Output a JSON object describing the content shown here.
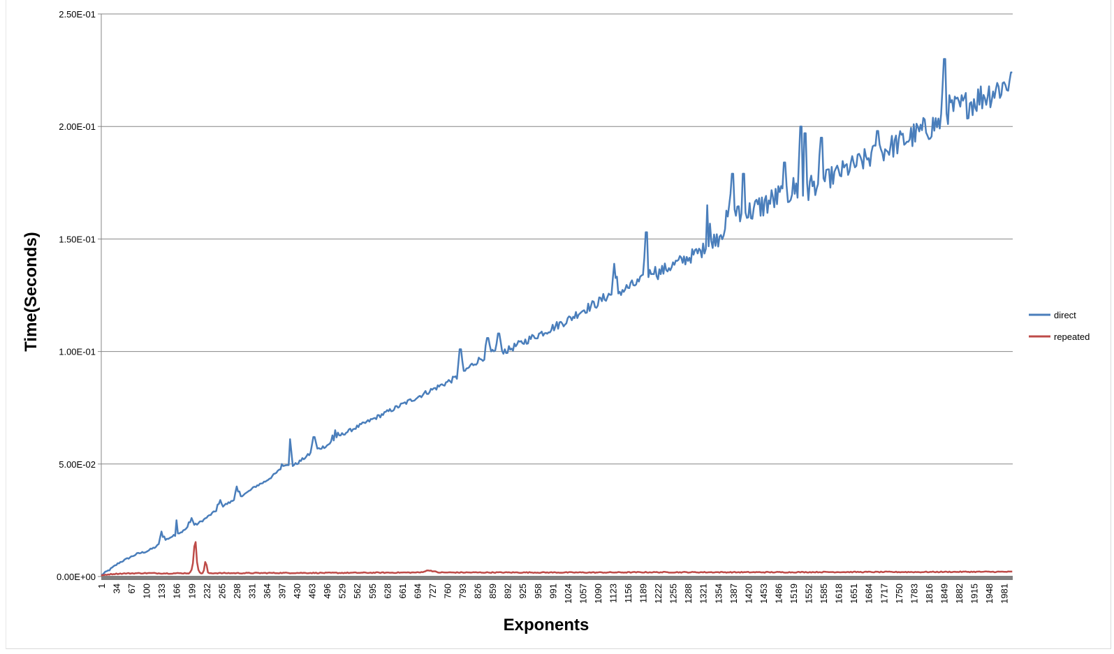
{
  "chart_data": {
    "type": "line",
    "title": "",
    "xlabel": "Exponents",
    "ylabel": "Time(Seconds)",
    "ylim": [
      0,
      0.25
    ],
    "y_ticks": [
      "0.00E+00",
      "5.00E-02",
      "1.00E-01",
      "1.50E-01",
      "2.00E-01",
      "2.50E-01"
    ],
    "x_range": [
      1,
      2000
    ],
    "x_tick_labels": [
      "1",
      "34",
      "67",
      "100",
      "133",
      "166",
      "199",
      "232",
      "265",
      "298",
      "331",
      "364",
      "397",
      "430",
      "463",
      "496",
      "529",
      "562",
      "595",
      "628",
      "661",
      "694",
      "727",
      "760",
      "793",
      "826",
      "859",
      "892",
      "925",
      "958",
      "991",
      "1024",
      "1057",
      "1090",
      "1123",
      "1156",
      "1189",
      "1222",
      "1255",
      "1288",
      "1321",
      "1354",
      "1387",
      "1420",
      "1453",
      "1486",
      "1519",
      "1552",
      "1585",
      "1618",
      "1651",
      "1684",
      "1717",
      "1750",
      "1783",
      "1816",
      "1849",
      "1882",
      "1915",
      "1948",
      "1981"
    ],
    "grid": "horizontal major gridlines",
    "legend_position": "right",
    "series": [
      {
        "name": "direct",
        "color": "#4a7ebb",
        "x": [
          1,
          20,
          40,
          60,
          80,
          100,
          120,
          140,
          160,
          170,
          180,
          199,
          210,
          225,
          245,
          265,
          285,
          300,
          320,
          340,
          360,
          380,
          397,
          410,
          420,
          430,
          450,
          470,
          496,
          520,
          540,
          560,
          580,
          600,
          620,
          640,
          660,
          680,
          700,
          720,
          740,
          760,
          780,
          793,
          810,
          830,
          850,
          870,
          892,
          910,
          930,
          950,
          970,
          991,
          1010,
          1030,
          1050,
          1070,
          1090,
          1110,
          1123,
          1140,
          1160,
          1180,
          1200,
          1210,
          1222,
          1240,
          1260,
          1280,
          1300,
          1320,
          1330,
          1340,
          1354,
          1370,
          1380,
          1390,
          1400,
          1420,
          1440,
          1460,
          1480,
          1500,
          1519,
          1530,
          1540,
          1560,
          1585,
          1600,
          1620,
          1640,
          1660,
          1680,
          1700,
          1720,
          1740,
          1760,
          1780,
          1800,
          1820,
          1840,
          1855,
          1860,
          1880,
          1900,
          1920,
          1940,
          1960,
          1980,
          2000
        ],
        "values": [
          0.0005,
          0.003,
          0.006,
          0.008,
          0.01,
          0.011,
          0.013,
          0.016,
          0.018,
          0.019,
          0.02,
          0.023,
          0.023,
          0.025,
          0.028,
          0.031,
          0.033,
          0.035,
          0.037,
          0.04,
          0.042,
          0.045,
          0.048,
          0.05,
          0.049,
          0.05,
          0.053,
          0.056,
          0.058,
          0.062,
          0.064,
          0.066,
          0.068,
          0.07,
          0.072,
          0.074,
          0.076,
          0.078,
          0.08,
          0.082,
          0.084,
          0.086,
          0.088,
          0.09,
          0.093,
          0.096,
          0.098,
          0.1,
          0.1,
          0.102,
          0.104,
          0.106,
          0.108,
          0.11,
          0.112,
          0.114,
          0.117,
          0.119,
          0.121,
          0.124,
          0.125,
          0.126,
          0.128,
          0.13,
          0.132,
          0.136,
          0.134,
          0.136,
          0.138,
          0.14,
          0.142,
          0.144,
          0.146,
          0.148,
          0.15,
          0.155,
          0.16,
          0.162,
          0.158,
          0.16,
          0.162,
          0.164,
          0.166,
          0.168,
          0.17,
          0.17,
          0.168,
          0.172,
          0.174,
          0.176,
          0.178,
          0.18,
          0.182,
          0.184,
          0.186,
          0.188,
          0.19,
          0.192,
          0.194,
          0.196,
          0.198,
          0.2,
          0.204,
          0.206,
          0.206,
          0.208,
          0.21,
          0.212,
          0.214,
          0.216,
          0.218
        ],
        "spikes": [
          {
            "x": 133,
            "value": 0.02
          },
          {
            "x": 166,
            "value": 0.025
          },
          {
            "x": 199,
            "value": 0.026
          },
          {
            "x": 262,
            "value": 0.034
          },
          {
            "x": 298,
            "value": 0.04
          },
          {
            "x": 397,
            "value": 0.05
          },
          {
            "x": 415,
            "value": 0.061
          },
          {
            "x": 467,
            "value": 0.062
          },
          {
            "x": 514,
            "value": 0.065
          },
          {
            "x": 788,
            "value": 0.101
          },
          {
            "x": 848,
            "value": 0.106
          },
          {
            "x": 872,
            "value": 0.108
          },
          {
            "x": 1126,
            "value": 0.139
          },
          {
            "x": 1196,
            "value": 0.153
          },
          {
            "x": 1330,
            "value": 0.165
          },
          {
            "x": 1385,
            "value": 0.179
          },
          {
            "x": 1410,
            "value": 0.179
          },
          {
            "x": 1500,
            "value": 0.184
          },
          {
            "x": 1536,
            "value": 0.2
          },
          {
            "x": 1545,
            "value": 0.197
          },
          {
            "x": 1580,
            "value": 0.195
          },
          {
            "x": 1704,
            "value": 0.198
          },
          {
            "x": 1851,
            "value": 0.23
          },
          {
            "x": 1998,
            "value": 0.224
          }
        ]
      },
      {
        "name": "repeated",
        "color": "#be4b48",
        "x": [
          1,
          10,
          30,
          60,
          100,
          150,
          195,
          201,
          207,
          212,
          218,
          225,
          230,
          235,
          240,
          300,
          400,
          500,
          600,
          700,
          720,
          740,
          800,
          900,
          1000,
          1100,
          1200,
          1300,
          1400,
          1500,
          1600,
          1700,
          1800,
          1900,
          2000
        ],
        "values": [
          0.0003,
          0.0008,
          0.0012,
          0.0014,
          0.0015,
          0.0014,
          0.0015,
          0.0035,
          0.0185,
          0.0035,
          0.0015,
          0.0015,
          0.0075,
          0.0016,
          0.0015,
          0.0015,
          0.0016,
          0.0016,
          0.0017,
          0.0018,
          0.0028,
          0.0018,
          0.0018,
          0.0018,
          0.0018,
          0.0018,
          0.0019,
          0.0019,
          0.0019,
          0.0019,
          0.002,
          0.002,
          0.002,
          0.0021,
          0.0021
        ]
      }
    ]
  }
}
